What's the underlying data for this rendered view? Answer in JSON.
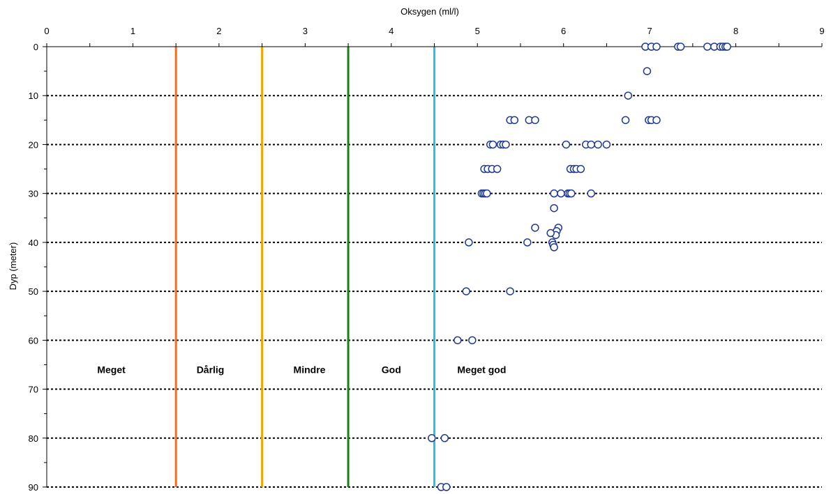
{
  "chart_data": {
    "type": "scatter",
    "title": "",
    "xlabel": "Oksygen (ml/l)",
    "ylabel": "Dyp (meter)",
    "xlim": [
      0,
      9
    ],
    "ylim": [
      0,
      90
    ],
    "y_inverted": true,
    "x_axis_position": "top",
    "x_ticks": [
      0,
      1,
      2,
      3,
      4,
      5,
      6,
      7,
      8,
      9
    ],
    "y_ticks": [
      0,
      10,
      20,
      30,
      40,
      50,
      60,
      70,
      80,
      90
    ],
    "grid": "horizontal dotted lines",
    "marker": {
      "shape": "circle",
      "fill": "#ffffff",
      "stroke": "#1f3a93"
    },
    "thresholds": [
      {
        "x": 1.5,
        "color": "#ff6a13"
      },
      {
        "x": 2.5,
        "color": "#f5a300"
      },
      {
        "x": 3.5,
        "color": "#1a7f1a"
      },
      {
        "x": 4.5,
        "color": "#22c4ea"
      }
    ],
    "zone_labels": [
      {
        "text": "Meget",
        "x": 0.75,
        "y": 66
      },
      {
        "text": "Dårlig",
        "x": 1.9,
        "y": 66
      },
      {
        "text": "Mindre",
        "x": 3.05,
        "y": 66
      },
      {
        "text": "God",
        "x": 4.0,
        "y": 66
      },
      {
        "text": "Meget god",
        "x": 5.05,
        "y": 66
      }
    ],
    "points": [
      [
        6.95,
        0
      ],
      [
        7.02,
        0
      ],
      [
        7.08,
        0
      ],
      [
        7.33,
        0
      ],
      [
        7.36,
        0
      ],
      [
        7.67,
        0
      ],
      [
        7.75,
        0
      ],
      [
        7.82,
        0
      ],
      [
        7.85,
        0
      ],
      [
        7.88,
        0
      ],
      [
        7.9,
        0
      ],
      [
        6.97,
        5
      ],
      [
        6.75,
        10
      ],
      [
        5.38,
        15
      ],
      [
        5.43,
        15
      ],
      [
        5.6,
        15
      ],
      [
        5.67,
        15
      ],
      [
        6.72,
        15
      ],
      [
        6.99,
        15
      ],
      [
        7.02,
        15
      ],
      [
        7.08,
        15
      ],
      [
        5.15,
        20
      ],
      [
        5.18,
        20
      ],
      [
        5.27,
        20
      ],
      [
        5.3,
        20
      ],
      [
        5.33,
        20
      ],
      [
        6.03,
        20
      ],
      [
        6.26,
        20
      ],
      [
        6.32,
        20
      ],
      [
        6.4,
        20
      ],
      [
        6.5,
        20
      ],
      [
        5.08,
        25
      ],
      [
        5.12,
        25
      ],
      [
        5.17,
        25
      ],
      [
        5.23,
        25
      ],
      [
        6.08,
        25
      ],
      [
        6.12,
        25
      ],
      [
        6.15,
        25
      ],
      [
        6.2,
        25
      ],
      [
        5.05,
        30
      ],
      [
        5.07,
        30
      ],
      [
        5.09,
        30
      ],
      [
        5.11,
        30
      ],
      [
        5.89,
        30
      ],
      [
        5.97,
        30
      ],
      [
        6.05,
        30
      ],
      [
        6.07,
        30
      ],
      [
        6.09,
        30
      ],
      [
        6.32,
        30
      ],
      [
        5.89,
        33
      ],
      [
        5.67,
        37
      ],
      [
        5.94,
        37
      ],
      [
        5.92,
        37.7
      ],
      [
        5.91,
        38.5
      ],
      [
        5.85,
        38.1
      ],
      [
        4.9,
        40
      ],
      [
        5.58,
        40
      ],
      [
        5.87,
        40
      ],
      [
        5.88,
        40.5
      ],
      [
        5.89,
        41
      ],
      [
        4.87,
        50
      ],
      [
        5.38,
        50
      ],
      [
        4.77,
        60
      ],
      [
        4.94,
        60
      ],
      [
        4.47,
        80
      ],
      [
        4.62,
        80
      ],
      [
        4.58,
        90
      ],
      [
        4.64,
        90
      ]
    ]
  }
}
